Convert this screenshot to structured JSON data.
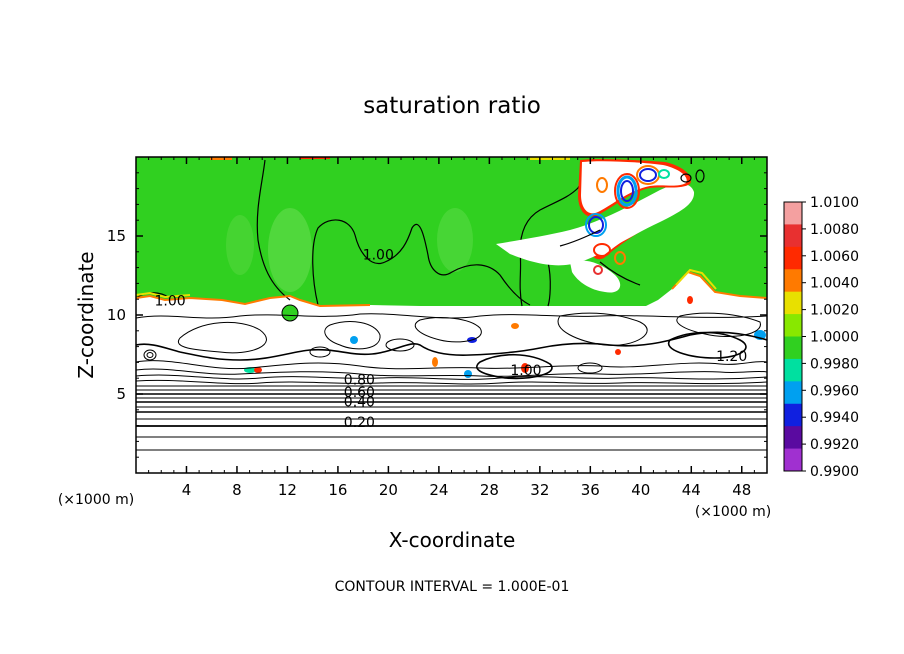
{
  "chart_data": {
    "type": "heatmap",
    "title": "saturation ratio",
    "xlabel": "X-coordinate",
    "ylabel": "Z-coordinate",
    "x_unit": "(×1000 m)",
    "z_unit": "(×1000 m)",
    "xlim": [
      0,
      50
    ],
    "ylim": [
      0,
      20
    ],
    "x_ticks": [
      4,
      8,
      12,
      16,
      20,
      24,
      28,
      32,
      36,
      40,
      44,
      48
    ],
    "y_ticks": [
      5,
      10,
      15
    ],
    "footer": "CONTOUR INTERVAL = 1.000E-01",
    "colorbar": {
      "labels": [
        "1.0100",
        "1.0080",
        "1.0060",
        "1.0040",
        "1.0020",
        "1.0000",
        "0.9980",
        "0.9960",
        "0.9940",
        "0.9920",
        "0.9900"
      ],
      "colors": [
        "#f4a0a0",
        "#e83030",
        "#ff2a00",
        "#ff7a00",
        "#e8e000",
        "#88e800",
        "#30d020",
        "#00e0a0",
        "#00a0f0",
        "#1020e0",
        "#5a0aa0",
        "#a030d0"
      ]
    },
    "contour_labels": [
      {
        "text": "0.20",
        "x": 17.7,
        "z": 2.9
      },
      {
        "text": "0.40",
        "x": 17.7,
        "z": 4.2
      },
      {
        "text": "0.60",
        "x": 17.7,
        "z": 4.8
      },
      {
        "text": "0.80",
        "x": 17.7,
        "z": 5.6
      },
      {
        "text": "1.00",
        "x": 30.9,
        "z": 6.2
      },
      {
        "text": "1.20",
        "x": 47.2,
        "z": 7.1
      },
      {
        "text": "1.00",
        "x": 19.2,
        "z": 13.5
      },
      {
        "text": "1.00",
        "x": 2.7,
        "z": 10.6
      }
    ],
    "regions": {
      "upper_layer": {
        "z_range": [
          10.5,
          20
        ],
        "value": 1.0,
        "color": "#30d020"
      },
      "lower_layer": {
        "z_range": [
          0,
          10.5
        ],
        "value": "> 1.0100 (unfilled)"
      }
    }
  },
  "ticks": {
    "x": [
      {
        "label": "4",
        "x": 4
      },
      {
        "label": "8",
        "x": 8
      },
      {
        "label": "12",
        "x": 12
      },
      {
        "label": "16",
        "x": 16
      },
      {
        "label": "20",
        "x": 20
      },
      {
        "label": "24",
        "x": 24
      },
      {
        "label": "28",
        "x": 28
      },
      {
        "label": "32",
        "x": 32
      },
      {
        "label": "36",
        "x": 36
      },
      {
        "label": "40",
        "x": 40
      },
      {
        "label": "44",
        "x": 44
      },
      {
        "label": "48",
        "x": 48
      }
    ],
    "y": [
      {
        "label": "5",
        "z": 5
      },
      {
        "label": "10",
        "z": 10
      },
      {
        "label": "15",
        "z": 15
      }
    ]
  }
}
